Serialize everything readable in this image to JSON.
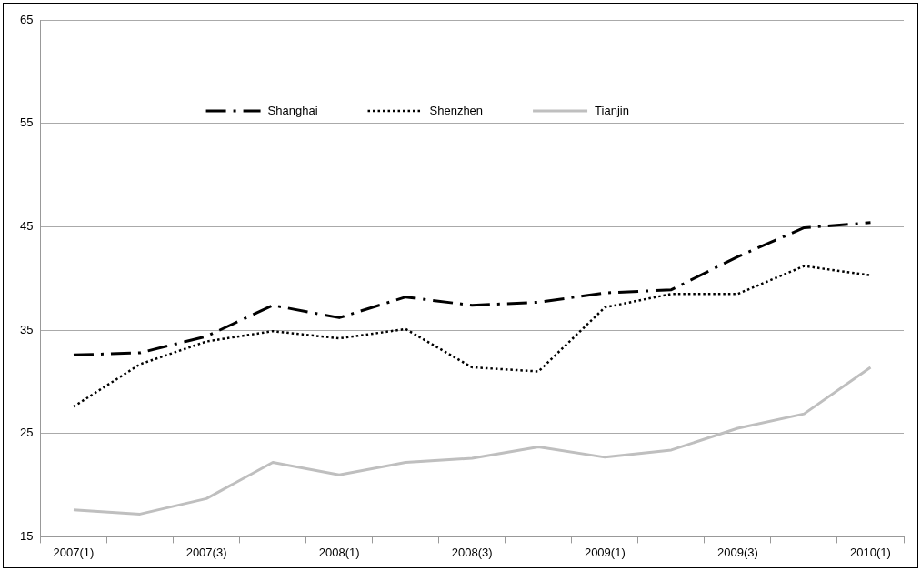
{
  "chart_data": {
    "type": "line",
    "categories": [
      "2007(1)",
      null,
      "2007(3)",
      null,
      "2008(1)",
      null,
      "2008(3)",
      null,
      "2009(1)",
      null,
      "2009(3)",
      null,
      "2010(1)"
    ],
    "series": [
      {
        "name": "Shanghai",
        "color": "#000000",
        "line_style": "dashed",
        "values": [
          32.6,
          32.8,
          34.4,
          37.4,
          36.2,
          38.2,
          37.4,
          37.7,
          38.6,
          38.9,
          42.1,
          44.9,
          45.4
        ]
      },
      {
        "name": "Shenzhen",
        "color": "#000000",
        "line_style": "dotted",
        "values": [
          27.6,
          31.7,
          33.9,
          34.9,
          34.2,
          35.1,
          31.4,
          31.0,
          37.2,
          38.5,
          38.5,
          41.2,
          40.3
        ]
      },
      {
        "name": "Tianjin",
        "color": "#bfbfbf",
        "line_style": "solid",
        "values": [
          17.6,
          17.2,
          18.7,
          22.2,
          21.0,
          22.2,
          22.6,
          23.7,
          22.7,
          23.4,
          25.5,
          26.9,
          31.4
        ]
      }
    ],
    "ylim": [
      15,
      65
    ],
    "yticks": [
      15,
      25,
      35,
      45,
      55,
      65
    ],
    "grid": "y",
    "legend": "top",
    "marker": "none"
  }
}
